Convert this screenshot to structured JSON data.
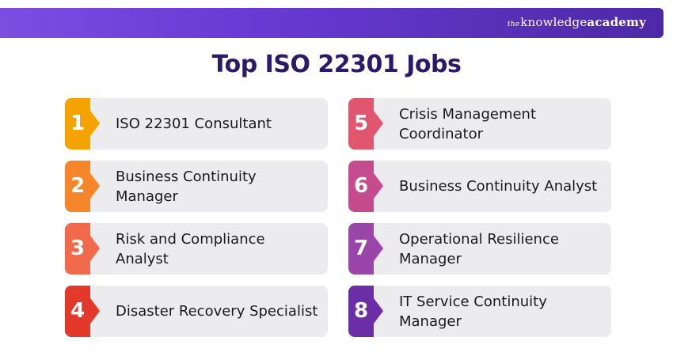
{
  "brand": {
    "prefix": "the",
    "knowledge": "knowledge",
    "academy": "academy"
  },
  "title": "Top ISO 22301 Jobs",
  "jobs": [
    {
      "number": "1",
      "label": "ISO 22301 Consultant",
      "color": "#f5a300"
    },
    {
      "number": "2",
      "label": "Business Continuity Manager",
      "color": "#f5862a"
    },
    {
      "number": "3",
      "label": "Risk and Compliance Analyst",
      "color": "#f16a4c"
    },
    {
      "number": "4",
      "label": "Disaster Recovery Specialist",
      "color": "#e3392a"
    },
    {
      "number": "5",
      "label": "Crisis Management Coordinator",
      "color": "#e0566f"
    },
    {
      "number": "6",
      "label": "Business Continuity Analyst",
      "color": "#c54b8f"
    },
    {
      "number": "7",
      "label": "Operational Resilience Manager",
      "color": "#9a46a8"
    },
    {
      "number": "8",
      "label": "IT Service Continuity Manager",
      "color": "#6a2fa5"
    }
  ]
}
